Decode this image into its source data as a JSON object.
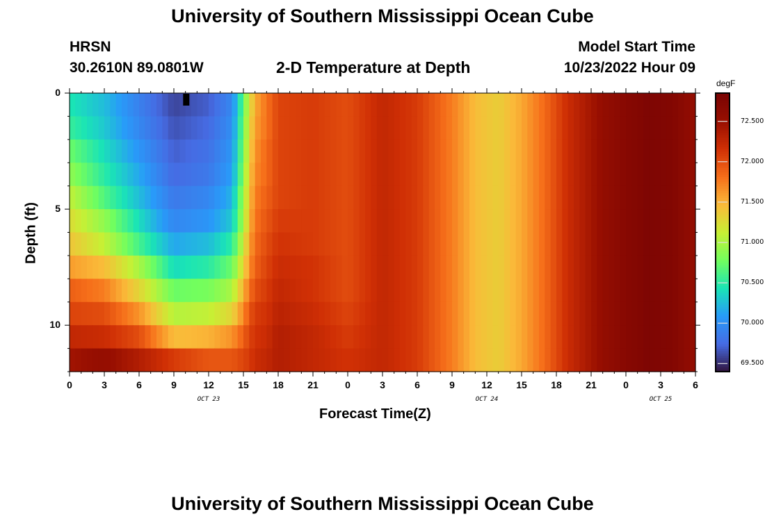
{
  "page": {
    "title_top": "University of Southern Mississippi Ocean Cube",
    "title_bottom": "University of Southern Mississippi Ocean Cube"
  },
  "station": {
    "id": "HRSN",
    "location": "30.2610N  89.0801W"
  },
  "model": {
    "label": "Model Start Time",
    "start": "10/23/2022 Hour 09"
  },
  "chart_data": {
    "type": "heatmap",
    "title": "2-D Temperature at Depth",
    "xlabel": "Forecast Time(Z)",
    "ylabel": "Depth (ft)",
    "units": "degF",
    "colormap": "turbo",
    "x_range_hours": [
      0,
      54
    ],
    "y_range_ft": [
      0,
      12
    ],
    "color_range": [
      69.4,
      72.85
    ],
    "x_ticks": [
      {
        "hour": 0,
        "label": "0"
      },
      {
        "hour": 3,
        "label": "3"
      },
      {
        "hour": 6,
        "label": "6"
      },
      {
        "hour": 9,
        "label": "9"
      },
      {
        "hour": 12,
        "label": "12"
      },
      {
        "hour": 15,
        "label": "15"
      },
      {
        "hour": 18,
        "label": "18"
      },
      {
        "hour": 21,
        "label": "21"
      },
      {
        "hour": 24,
        "label": "0"
      },
      {
        "hour": 27,
        "label": "3"
      },
      {
        "hour": 30,
        "label": "6"
      },
      {
        "hour": 33,
        "label": "9"
      },
      {
        "hour": 36,
        "label": "12"
      },
      {
        "hour": 39,
        "label": "15"
      },
      {
        "hour": 42,
        "label": "18"
      },
      {
        "hour": 45,
        "label": "21"
      },
      {
        "hour": 48,
        "label": "0"
      },
      {
        "hour": 51,
        "label": "3"
      },
      {
        "hour": 54,
        "label": "6"
      }
    ],
    "date_labels": [
      {
        "hour": 12,
        "label": "OCT 23"
      },
      {
        "hour": 36,
        "label": "OCT 24"
      },
      {
        "hour": 51,
        "label": "OCT 25"
      }
    ],
    "y_ticks": [
      {
        "depth": 0,
        "label": "0"
      },
      {
        "depth": 5,
        "label": "5"
      },
      {
        "depth": 10,
        "label": "10"
      }
    ],
    "colorbar_ticks": [
      {
        "value": 72.5,
        "label": "72.500"
      },
      {
        "value": 72.0,
        "label": "72.000"
      },
      {
        "value": 71.5,
        "label": "71.500"
      },
      {
        "value": 71.0,
        "label": "71.000"
      },
      {
        "value": 70.5,
        "label": "70.500"
      },
      {
        "value": 70.0,
        "label": "70.000"
      },
      {
        "value": 69.5,
        "label": "69.500"
      }
    ],
    "depth_levels_ft": [
      0.5,
      1.5,
      2.5,
      3.5,
      4.5,
      5.5,
      6.5,
      7.5,
      8.5,
      9.5,
      10.5,
      11.5
    ],
    "time_anchors_hours": [
      0,
      3,
      6,
      9,
      12,
      14,
      15,
      15.5,
      16,
      17,
      18,
      21,
      24,
      27,
      30,
      33,
      35,
      37,
      39,
      41,
      43,
      46,
      48,
      50,
      52,
      54
    ],
    "values_by_depth": [
      [
        70.45,
        70.25,
        69.9,
        69.6,
        69.7,
        69.95,
        70.7,
        71.2,
        71.55,
        71.8,
        72.05,
        72.1,
        72.0,
        72.25,
        72.1,
        71.75,
        71.45,
        71.35,
        71.55,
        71.85,
        72.2,
        72.55,
        72.7,
        72.8,
        72.75,
        72.55
      ],
      [
        70.55,
        70.3,
        69.95,
        69.65,
        69.75,
        70.0,
        70.75,
        71.25,
        71.6,
        71.8,
        72.05,
        72.1,
        72.0,
        72.25,
        72.1,
        71.75,
        71.45,
        71.35,
        71.55,
        71.85,
        72.2,
        72.55,
        72.7,
        72.8,
        72.75,
        72.55
      ],
      [
        70.75,
        70.4,
        70.05,
        69.7,
        69.8,
        70.05,
        70.8,
        71.3,
        71.65,
        71.85,
        72.05,
        72.1,
        72.0,
        72.25,
        72.1,
        71.75,
        71.45,
        71.35,
        71.55,
        71.85,
        72.2,
        72.55,
        72.7,
        72.8,
        72.75,
        72.55
      ],
      [
        70.9,
        70.5,
        70.15,
        69.75,
        69.85,
        70.1,
        70.85,
        71.35,
        71.7,
        71.85,
        72.05,
        72.1,
        72.0,
        72.25,
        72.1,
        71.75,
        71.45,
        71.35,
        71.55,
        71.85,
        72.2,
        72.55,
        72.7,
        72.8,
        72.75,
        72.55
      ],
      [
        71.1,
        70.65,
        70.25,
        69.85,
        69.95,
        70.2,
        70.95,
        71.4,
        71.75,
        71.9,
        72.05,
        72.1,
        72.0,
        72.25,
        72.1,
        71.75,
        71.45,
        71.35,
        71.55,
        71.85,
        72.2,
        72.55,
        72.7,
        72.8,
        72.75,
        72.55
      ],
      [
        71.25,
        70.9,
        70.4,
        69.95,
        70.05,
        70.3,
        71.0,
        71.45,
        71.8,
        71.95,
        72.1,
        72.1,
        72.0,
        72.25,
        72.1,
        71.75,
        71.45,
        71.35,
        71.55,
        71.85,
        72.2,
        72.55,
        72.7,
        72.8,
        72.75,
        72.55
      ],
      [
        71.4,
        71.1,
        70.6,
        70.15,
        70.25,
        70.5,
        71.15,
        71.55,
        71.85,
        72.0,
        72.15,
        72.1,
        72.0,
        72.25,
        72.1,
        71.75,
        71.45,
        71.35,
        71.55,
        71.85,
        72.2,
        72.55,
        72.7,
        72.8,
        72.75,
        72.55
      ],
      [
        71.6,
        71.45,
        71.0,
        70.4,
        70.5,
        70.75,
        71.3,
        71.65,
        71.9,
        72.05,
        72.2,
        72.15,
        72.0,
        72.25,
        72.1,
        71.75,
        71.45,
        71.35,
        71.55,
        71.85,
        72.2,
        72.55,
        72.7,
        72.8,
        72.75,
        72.55
      ],
      [
        71.9,
        71.75,
        71.3,
        70.75,
        70.8,
        71.0,
        71.5,
        71.8,
        72.0,
        72.1,
        72.25,
        72.15,
        72.0,
        72.25,
        72.1,
        71.75,
        71.45,
        71.35,
        71.55,
        71.85,
        72.2,
        72.55,
        72.7,
        72.8,
        72.75,
        72.55
      ],
      [
        72.05,
        72.0,
        71.65,
        71.05,
        71.1,
        71.3,
        71.7,
        71.95,
        72.1,
        72.15,
        72.3,
        72.2,
        72.05,
        72.25,
        72.1,
        71.75,
        71.45,
        71.35,
        71.55,
        71.85,
        72.2,
        72.55,
        72.7,
        72.8,
        72.75,
        72.55
      ],
      [
        72.25,
        72.2,
        72.0,
        71.45,
        71.5,
        71.65,
        71.9,
        72.05,
        72.15,
        72.2,
        72.35,
        72.25,
        72.1,
        72.25,
        72.1,
        71.75,
        71.45,
        71.35,
        71.55,
        71.85,
        72.2,
        72.55,
        72.7,
        72.8,
        72.75,
        72.55
      ],
      [
        72.45,
        72.55,
        72.35,
        72.1,
        71.95,
        71.95,
        72.05,
        72.1,
        72.2,
        72.25,
        72.35,
        72.25,
        72.15,
        72.25,
        72.1,
        71.75,
        71.45,
        71.35,
        71.55,
        71.85,
        72.2,
        72.55,
        72.7,
        72.8,
        72.75,
        72.55
      ]
    ]
  }
}
